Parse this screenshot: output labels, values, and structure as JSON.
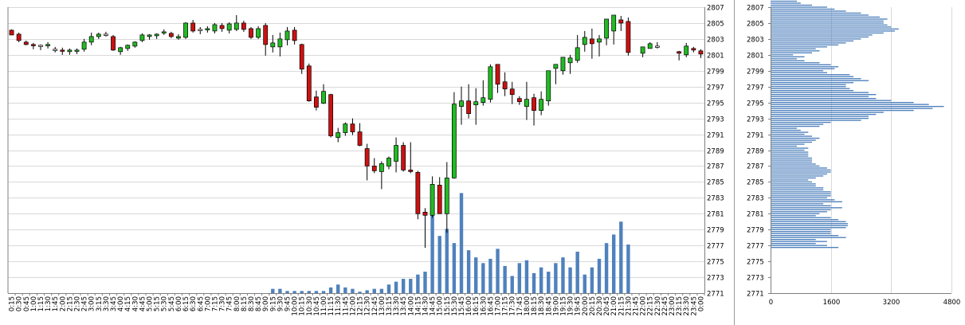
{
  "chart_data": [
    {
      "type": "candlestick",
      "title": "",
      "xlabel": "",
      "ylabel": "",
      "ylim": [
        2771,
        2807
      ],
      "yticks": [
        2771,
        2773,
        2775,
        2777,
        2779,
        2781,
        2783,
        2785,
        2787,
        2789,
        2791,
        2793,
        2795,
        2797,
        2799,
        2801,
        2803,
        2805,
        2807
      ],
      "xticks": [
        "0:15",
        "0:30",
        "0:45",
        "1:00",
        "1:15",
        "1:30",
        "1:45",
        "2:00",
        "2:15",
        "2:30",
        "2:45",
        "3:00",
        "3:15",
        "3:30",
        "3:45",
        "4:00",
        "4:15",
        "4:30",
        "4:45",
        "5:00",
        "5:15",
        "5:30",
        "5:45",
        "6:00",
        "6:15",
        "6:30",
        "6:45",
        "7:00",
        "7:15",
        "7:30",
        "7:45",
        "8:00",
        "8:15",
        "8:30",
        "8:45",
        "9:00",
        "9:15",
        "9:30",
        "9:45",
        "10:00",
        "10:15",
        "10:30",
        "10:45",
        "11:00",
        "11:15",
        "11:30",
        "11:45",
        "12:00",
        "12:15",
        "12:30",
        "12:45",
        "13:00",
        "13:15",
        "13:30",
        "13:45",
        "14:00",
        "14:15",
        "14:30",
        "14:45",
        "15:00",
        "15:15",
        "15:30",
        "15:45",
        "16:00",
        "16:15",
        "16:30",
        "16:45",
        "17:00",
        "17:15",
        "17:30",
        "17:45",
        "18:00",
        "18:15",
        "18:30",
        "18:45",
        "19:00",
        "19:15",
        "19:30",
        "19:45",
        "20:00",
        "20:15",
        "20:30",
        "20:45",
        "21:00",
        "21:15",
        "21:30",
        "21:45",
        "22:00",
        "22:15",
        "22:30",
        "22:45",
        "23:00",
        "23:15",
        "23:30",
        "23:45",
        "0:00"
      ],
      "grid": true,
      "colors": {
        "up": "#22bb22",
        "down": "#cc1111",
        "flat": "#ffffff",
        "volume": "#4f81bd",
        "grid": "#d9d9d9",
        "axis": "#7f7f7f"
      },
      "ohlc": [
        [
          2804.1,
          2804.2,
          2803.5,
          2803.5
        ],
        [
          2803.6,
          2803.8,
          2802.6,
          2802.8
        ],
        [
          2802.6,
          2802.8,
          2802.2,
          2802.3
        ],
        [
          2802.3,
          2802.5,
          2801.7,
          2802.2
        ],
        [
          2802.2,
          2802.3,
          2801.6,
          2802.2
        ],
        [
          2802.2,
          2802.6,
          2801.8,
          2802.3
        ],
        [
          2801.7,
          2802.0,
          2801.3,
          2801.7
        ],
        [
          2801.6,
          2801.9,
          2801.0,
          2801.5
        ],
        [
          2801.4,
          2801.8,
          2801.0,
          2801.6
        ],
        [
          2801.5,
          2801.8,
          2801.1,
          2801.6
        ],
        [
          2801.7,
          2803.0,
          2801.4,
          2802.6
        ],
        [
          2802.6,
          2803.8,
          2802.2,
          2803.3
        ],
        [
          2803.3,
          2803.8,
          2803.0,
          2803.6
        ],
        [
          2803.6,
          2803.9,
          2803.3,
          2803.6
        ],
        [
          2803.3,
          2803.5,
          2801.5,
          2801.6
        ],
        [
          2801.4,
          2802.0,
          2801.0,
          2801.9
        ],
        [
          2801.8,
          2802.3,
          2801.5,
          2802.2
        ],
        [
          2802.1,
          2802.7,
          2801.9,
          2802.6
        ],
        [
          2802.8,
          2803.7,
          2802.6,
          2803.5
        ],
        [
          2803.3,
          2803.6,
          2802.9,
          2803.5
        ],
        [
          2803.4,
          2803.7,
          2803.0,
          2803.6
        ],
        [
          2803.8,
          2804.2,
          2803.5,
          2803.9
        ],
        [
          2803.7,
          2803.9,
          2803.1,
          2803.3
        ],
        [
          2803.1,
          2803.6,
          2802.9,
          2803.3
        ],
        [
          2803.2,
          2805.1,
          2803.0,
          2805.0
        ],
        [
          2805.0,
          2805.4,
          2803.8,
          2804.0
        ],
        [
          2804.2,
          2804.5,
          2803.6,
          2804.2
        ],
        [
          2804.2,
          2804.6,
          2803.8,
          2804.3
        ],
        [
          2804.0,
          2805.0,
          2803.7,
          2804.8
        ],
        [
          2804.7,
          2805.0,
          2803.9,
          2804.3
        ],
        [
          2804.1,
          2805.1,
          2803.7,
          2804.9
        ],
        [
          2804.2,
          2806.0,
          2804.0,
          2805.0
        ],
        [
          2805.0,
          2805.3,
          2803.9,
          2804.2
        ],
        [
          2804.3,
          2804.5,
          2803.0,
          2803.2
        ],
        [
          2803.2,
          2804.6,
          2803.0,
          2804.3
        ],
        [
          2804.7,
          2805.0,
          2800.9,
          2802.3
        ],
        [
          2802.0,
          2803.5,
          2801.3,
          2802.5
        ],
        [
          2802.0,
          2803.8,
          2800.8,
          2803.0
        ],
        [
          2802.9,
          2804.5,
          2802.2,
          2804.0
        ],
        [
          2804.1,
          2804.5,
          2802.3,
          2802.8
        ],
        [
          2802.3,
          2802.4,
          2798.6,
          2799.2
        ],
        [
          2799.6,
          2799.9,
          2795.1,
          2795.2
        ],
        [
          2795.7,
          2796.5,
          2794.0,
          2794.4
        ],
        [
          2794.9,
          2797.3,
          2794.8,
          2796.4
        ],
        [
          2796.0,
          2796.1,
          2790.6,
          2790.8
        ],
        [
          2790.6,
          2791.8,
          2790.0,
          2791.2
        ],
        [
          2791.2,
          2792.5,
          2790.8,
          2792.3
        ],
        [
          2792.3,
          2793.0,
          2790.9,
          2791.3
        ],
        [
          2791.3,
          2792.4,
          2789.5,
          2789.6
        ],
        [
          2789.2,
          2789.8,
          2785.2,
          2787.0
        ],
        [
          2787.0,
          2788.0,
          2786.1,
          2786.4
        ],
        [
          2786.3,
          2787.6,
          2784.1,
          2787.3
        ],
        [
          2787.0,
          2788.2,
          2786.6,
          2788.0
        ],
        [
          2787.6,
          2790.6,
          2786.2,
          2789.6
        ],
        [
          2789.6,
          2790.0,
          2786.3,
          2786.5
        ],
        [
          2786.5,
          2790.0,
          2786.1,
          2786.3
        ],
        [
          2786.2,
          2786.4,
          2780.3,
          2781.0
        ],
        [
          2781.2,
          2781.7,
          2776.7,
          2780.8
        ],
        [
          2780.8,
          2785.7,
          2780.5,
          2784.7
        ],
        [
          2784.6,
          2785.6,
          2781.2,
          2781.0
        ],
        [
          2781.0,
          2787.5,
          2778.6,
          2785.5
        ],
        [
          2785.5,
          2796.3,
          2785.4,
          2794.8
        ],
        [
          2794.5,
          2797.0,
          2792.2,
          2795.2
        ],
        [
          2795.2,
          2797.3,
          2793.0,
          2793.6
        ],
        [
          2794.7,
          2796.8,
          2792.2,
          2795.1
        ],
        [
          2795.0,
          2797.8,
          2794.6,
          2795.6
        ],
        [
          2795.4,
          2799.8,
          2795.0,
          2799.5
        ],
        [
          2799.8,
          2799.8,
          2796.2,
          2797.3
        ],
        [
          2797.6,
          2798.8,
          2795.8,
          2796.7
        ],
        [
          2796.7,
          2797.6,
          2794.8,
          2796.0
        ],
        [
          2795.5,
          2795.8,
          2794.7,
          2795.1
        ],
        [
          2794.5,
          2797.6,
          2792.8,
          2795.4
        ],
        [
          2795.6,
          2796.1,
          2792.1,
          2794.0
        ],
        [
          2794.0,
          2796.4,
          2793.4,
          2795.4
        ],
        [
          2795.2,
          2797.8,
          2794.6,
          2799.0
        ],
        [
          2799.3,
          2799.7,
          2797.3,
          2799.8
        ],
        [
          2799.0,
          2800.4,
          2798.5,
          2800.7
        ],
        [
          2800.0,
          2801.0,
          2798.6,
          2800.6
        ],
        [
          2800.3,
          2803.5,
          2800.0,
          2801.9
        ],
        [
          2802.3,
          2804.0,
          2801.4,
          2803.2
        ],
        [
          2803.0,
          2804.3,
          2800.5,
          2802.4
        ],
        [
          2802.6,
          2803.5,
          2800.8,
          2803.0
        ],
        [
          2803.1,
          2805.5,
          2802.2,
          2805.5
        ],
        [
          2804.0,
          2806.0,
          2802.3,
          2806.0
        ],
        [
          2805.4,
          2805.9,
          2804.0,
          2805.0
        ],
        [
          2805.2,
          2805.7,
          2800.9,
          2801.3
        ],
        [
          null,
          null,
          null,
          null
        ],
        [
          2801.2,
          2802.0,
          2800.7,
          2802.0
        ],
        [
          2801.8,
          2802.6,
          2801.8,
          2802.4
        ],
        [
          2802.1,
          2802.6,
          2801.8,
          2802.1
        ],
        [
          null,
          null,
          null,
          null
        ],
        [
          null,
          null,
          null,
          null
        ],
        [
          2801.4,
          2801.5,
          2800.3,
          2801.2
        ],
        [
          2801.0,
          2802.5,
          2800.7,
          2802.1
        ],
        [
          2801.8,
          2802.0,
          2801.3,
          2801.6
        ],
        [
          2801.5,
          2801.7,
          2800.6,
          2801.1
        ]
      ],
      "volume": [
        0,
        0,
        0,
        0,
        0,
        0,
        0,
        0,
        0,
        0,
        0,
        0,
        0,
        0,
        0,
        0,
        0,
        0,
        0,
        0,
        0,
        0,
        0,
        0,
        0,
        0,
        0,
        0,
        0,
        0,
        0,
        0,
        0,
        0,
        0,
        0,
        60,
        60,
        30,
        30,
        30,
        30,
        30,
        30,
        80,
        120,
        80,
        60,
        20,
        40,
        60,
        60,
        120,
        160,
        200,
        200,
        260,
        300,
        1500,
        800,
        900,
        700,
        1400,
        600,
        500,
        420,
        480,
        620,
        380,
        240,
        420,
        460,
        280,
        360,
        300,
        420,
        500,
        360,
        580,
        260,
        360,
        480,
        700,
        820,
        1000,
        680,
        0,
        0,
        0,
        0,
        0,
        0,
        0,
        0,
        0,
        0
      ],
      "volume_ylim": [
        0,
        4000
      ]
    },
    {
      "type": "bar",
      "orientation": "horizontal",
      "title": "",
      "xlabel": "",
      "ylabel": "",
      "xlim": [
        0,
        4800
      ],
      "xticks": [
        0,
        1600,
        3200,
        4800
      ],
      "ylim": [
        2771,
        2807
      ],
      "yticks": [
        2771,
        2773,
        2775,
        2777,
        2779,
        2781,
        2783,
        2785,
        2787,
        2789,
        2791,
        2793,
        2795,
        2797,
        2799,
        2801,
        2803,
        2805,
        2807
      ],
      "grid": true,
      "colors": {
        "bar": "#4f81bd"
      },
      "bin_size": 0.25,
      "price_start": 2776.75,
      "values": [
        1800,
        1500,
        1200,
        1500,
        1200,
        2000,
        1800,
        1600,
        1600,
        1600,
        2000,
        2050,
        2050,
        2000,
        1800,
        1600,
        1200,
        1300,
        1500,
        1600,
        1900,
        1600,
        1400,
        1900,
        1700,
        1500,
        1600,
        1600,
        1600,
        1400,
        1400,
        1200,
        1200,
        1100,
        1000,
        1200,
        1400,
        1500,
        1600,
        1600,
        1500,
        1300,
        1200,
        1100,
        1100,
        1100,
        1000,
        1000,
        1000,
        900,
        1000,
        700,
        900,
        1100,
        1200,
        1300,
        1100,
        900,
        1000,
        800,
        700,
        1300,
        1400,
        1600,
        2400,
        2600,
        2600,
        2800,
        3000,
        3800,
        4300,
        4600,
        4200,
        3800,
        3200,
        2800,
        2600,
        2800,
        2600,
        2200,
        2100,
        2000,
        2000,
        2200,
        2600,
        2400,
        2200,
        2100,
        1500,
        1400,
        1700,
        1800,
        1600,
        1300,
        900,
        700,
        900,
        600,
        1100,
        1300,
        1200,
        1500,
        1800,
        2000,
        2200,
        2400,
        2600,
        2700,
        3000,
        3300,
        3400,
        3200,
        3100,
        3000,
        3000,
        3100,
        2900,
        2600,
        2400,
        2000,
        1700,
        1500,
        1100,
        800,
        700,
        400,
        300
      ]
    }
  ]
}
